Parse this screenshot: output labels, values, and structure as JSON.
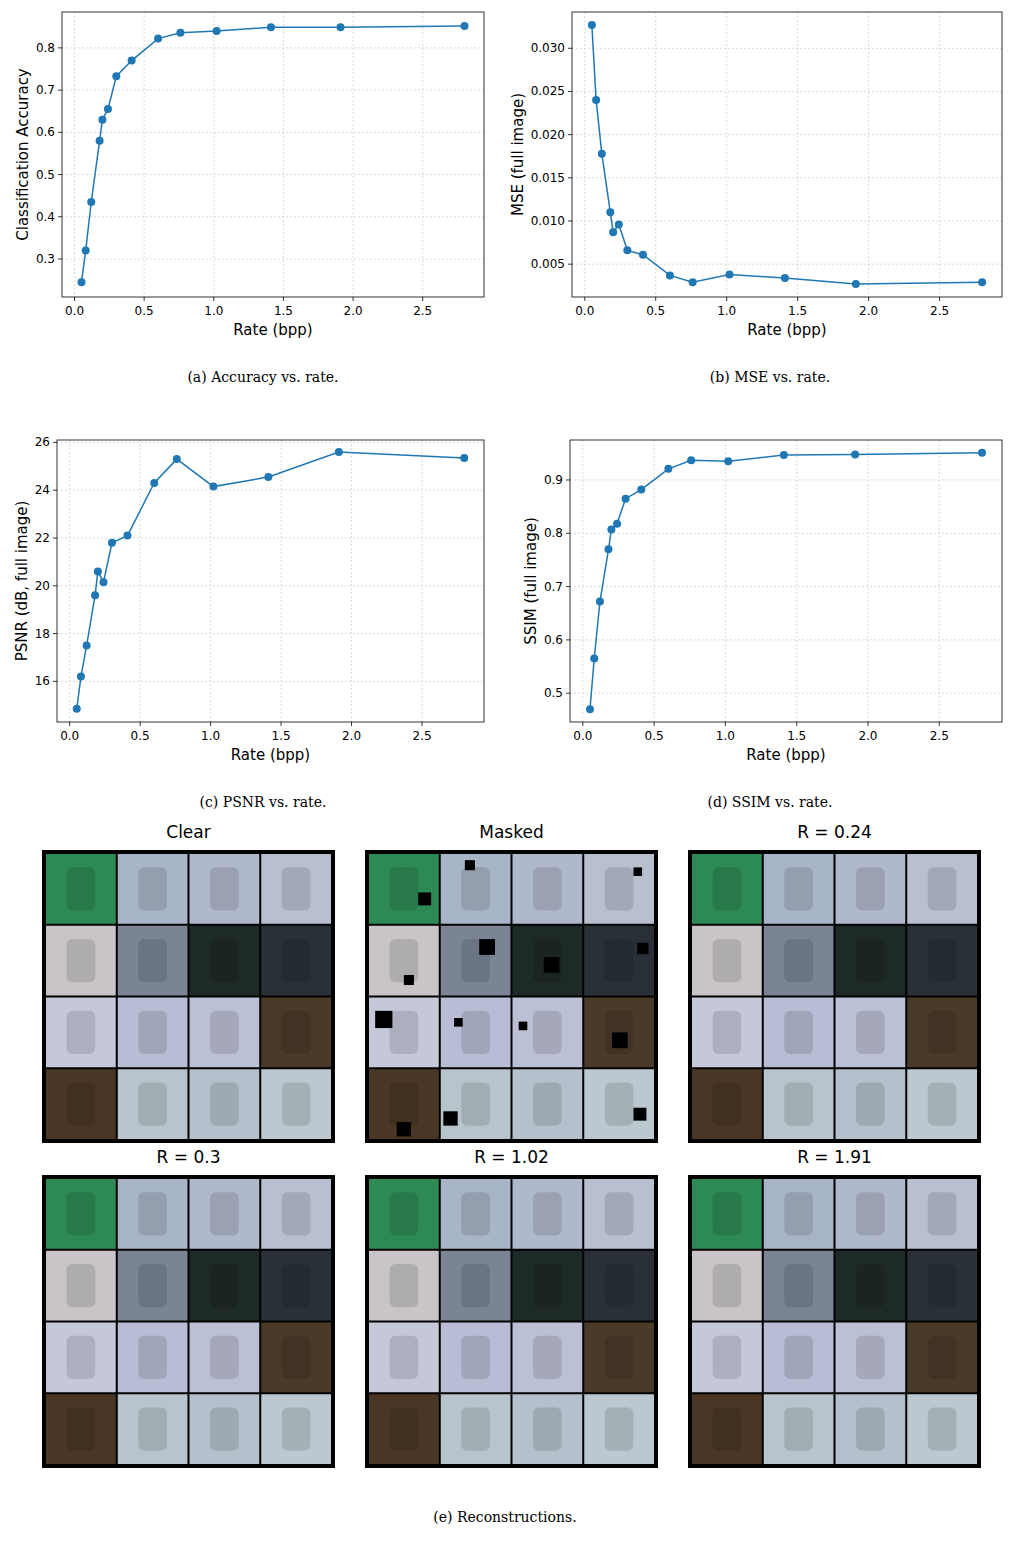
{
  "chart_data": [
    {
      "type": "line",
      "caption": "(a) Accuracy vs. rate.",
      "x_label": "Rate (bpp)",
      "y_label": "Classification Accuracy",
      "color": "#1f77b4",
      "marker": "circle",
      "grid": true,
      "x": [
        0.05,
        0.08,
        0.12,
        0.18,
        0.2,
        0.24,
        0.3,
        0.41,
        0.6,
        0.76,
        1.02,
        1.41,
        1.91,
        2.8
      ],
      "values": [
        0.245,
        0.32,
        0.435,
        0.58,
        0.63,
        0.655,
        0.733,
        0.77,
        0.822,
        0.836,
        0.84,
        0.849,
        0.849,
        0.852
      ],
      "xlim": [
        -0.09,
        2.94
      ],
      "xticks": [
        {
          "value": 0,
          "label": "0.0"
        },
        0.5,
        {
          "value": 1,
          "label": "1.0"
        },
        1.5,
        {
          "value": 2,
          "label": "2.0"
        },
        2.5
      ],
      "ylim": [
        0.21,
        0.885
      ],
      "yticks": [
        0.3,
        0.4,
        0.5,
        0.6,
        0.7,
        0.8
      ]
    },
    {
      "type": "line",
      "caption": "(b) MSE vs. rate.",
      "x_label": "Rate (bpp)",
      "y_label": "MSE (full image)",
      "color": "#1f77b4",
      "marker": "circle",
      "grid": true,
      "x": [
        0.05,
        0.08,
        0.12,
        0.18,
        0.2,
        0.24,
        0.3,
        0.41,
        0.6,
        0.76,
        1.02,
        1.41,
        1.91,
        2.8
      ],
      "values": [
        0.0327,
        0.024,
        0.0178,
        0.011,
        0.0087,
        0.0096,
        0.0066,
        0.0061,
        0.0037,
        0.0029,
        0.0038,
        0.0034,
        0.0027,
        0.0029
      ],
      "xlim": [
        -0.09,
        2.94
      ],
      "xticks": [
        {
          "value": 0,
          "label": "0.0"
        },
        0.5,
        {
          "value": 1,
          "label": "1.0"
        },
        1.5,
        {
          "value": 2,
          "label": "2.0"
        },
        2.5
      ],
      "ylim": [
        0.0012,
        0.0342
      ],
      "yticks": [
        0.005,
        {
          "value": 0.01,
          "label": "0.010"
        },
        0.015,
        {
          "value": 0.02,
          "label": "0.020"
        },
        0.025,
        {
          "value": 0.03,
          "label": "0.030"
        }
      ]
    },
    {
      "type": "line",
      "caption": "(c) PSNR vs. rate.",
      "x_label": "Rate (bpp)",
      "y_label": "PSNR (dB, full image)",
      "color": "#1f77b4",
      "marker": "circle",
      "grid": true,
      "x": [
        0.05,
        0.08,
        0.12,
        0.18,
        0.2,
        0.24,
        0.3,
        0.41,
        0.6,
        0.76,
        1.02,
        1.41,
        1.91,
        2.8
      ],
      "values": [
        14.85,
        16.2,
        17.5,
        19.6,
        20.6,
        20.15,
        21.8,
        22.1,
        24.3,
        25.3,
        24.15,
        24.55,
        25.6,
        25.35
      ],
      "xlim": [
        -0.09,
        2.94
      ],
      "xticks": [
        {
          "value": 0,
          "label": "0.0"
        },
        0.5,
        {
          "value": 1,
          "label": "1.0"
        },
        1.5,
        {
          "value": 2,
          "label": "2.0"
        },
        2.5
      ],
      "ylim": [
        14.3,
        26.1
      ],
      "yticks": [
        16,
        18,
        20,
        22,
        24,
        26
      ]
    },
    {
      "type": "line",
      "caption": "(d) SSIM vs. rate.",
      "x_label": "Rate (bpp)",
      "y_label": "SSIM (full image)",
      "color": "#1f77b4",
      "marker": "circle",
      "grid": true,
      "x": [
        0.05,
        0.08,
        0.12,
        0.18,
        0.2,
        0.24,
        0.3,
        0.41,
        0.6,
        0.76,
        1.02,
        1.41,
        1.91,
        2.8
      ],
      "values": [
        0.47,
        0.565,
        0.672,
        0.77,
        0.807,
        0.818,
        0.865,
        0.882,
        0.921,
        0.937,
        0.935,
        0.947,
        0.948,
        0.951
      ],
      "xlim": [
        -0.09,
        2.94
      ],
      "xticks": [
        {
          "value": 0,
          "label": "0.0"
        },
        0.5,
        {
          "value": 1,
          "label": "1.0"
        },
        1.5,
        {
          "value": 2,
          "label": "2.0"
        },
        2.5
      ],
      "ylim": [
        0.446,
        0.975
      ],
      "yticks": [
        0.5,
        0.6,
        0.7,
        0.8,
        0.9
      ]
    }
  ],
  "figure": {
    "images": {
      "caption": "(e) Reconstructions.",
      "tile_colors": [
        "#2e8a55",
        "#a8b4c8",
        "#b0b8cc",
        "#b8c0d0",
        "#c8c4c8",
        "#7a8494",
        "#1e2a28",
        "#2a3038",
        "#c4c8d8",
        "#b8bcd4",
        "#bcc0d4",
        "#4a3a28",
        "#4a3624",
        "#b8c4cc",
        "#b4c0cc",
        "#bcc8d0"
      ],
      "panels": [
        {
          "title": "Clear"
        },
        {
          "title": "Masked",
          "masked": true
        },
        {
          "title": "R = 0.24"
        },
        {
          "title": "R = 0.3"
        },
        {
          "title": "R = 1.02"
        },
        {
          "title": "R = 1.91"
        }
      ]
    }
  }
}
